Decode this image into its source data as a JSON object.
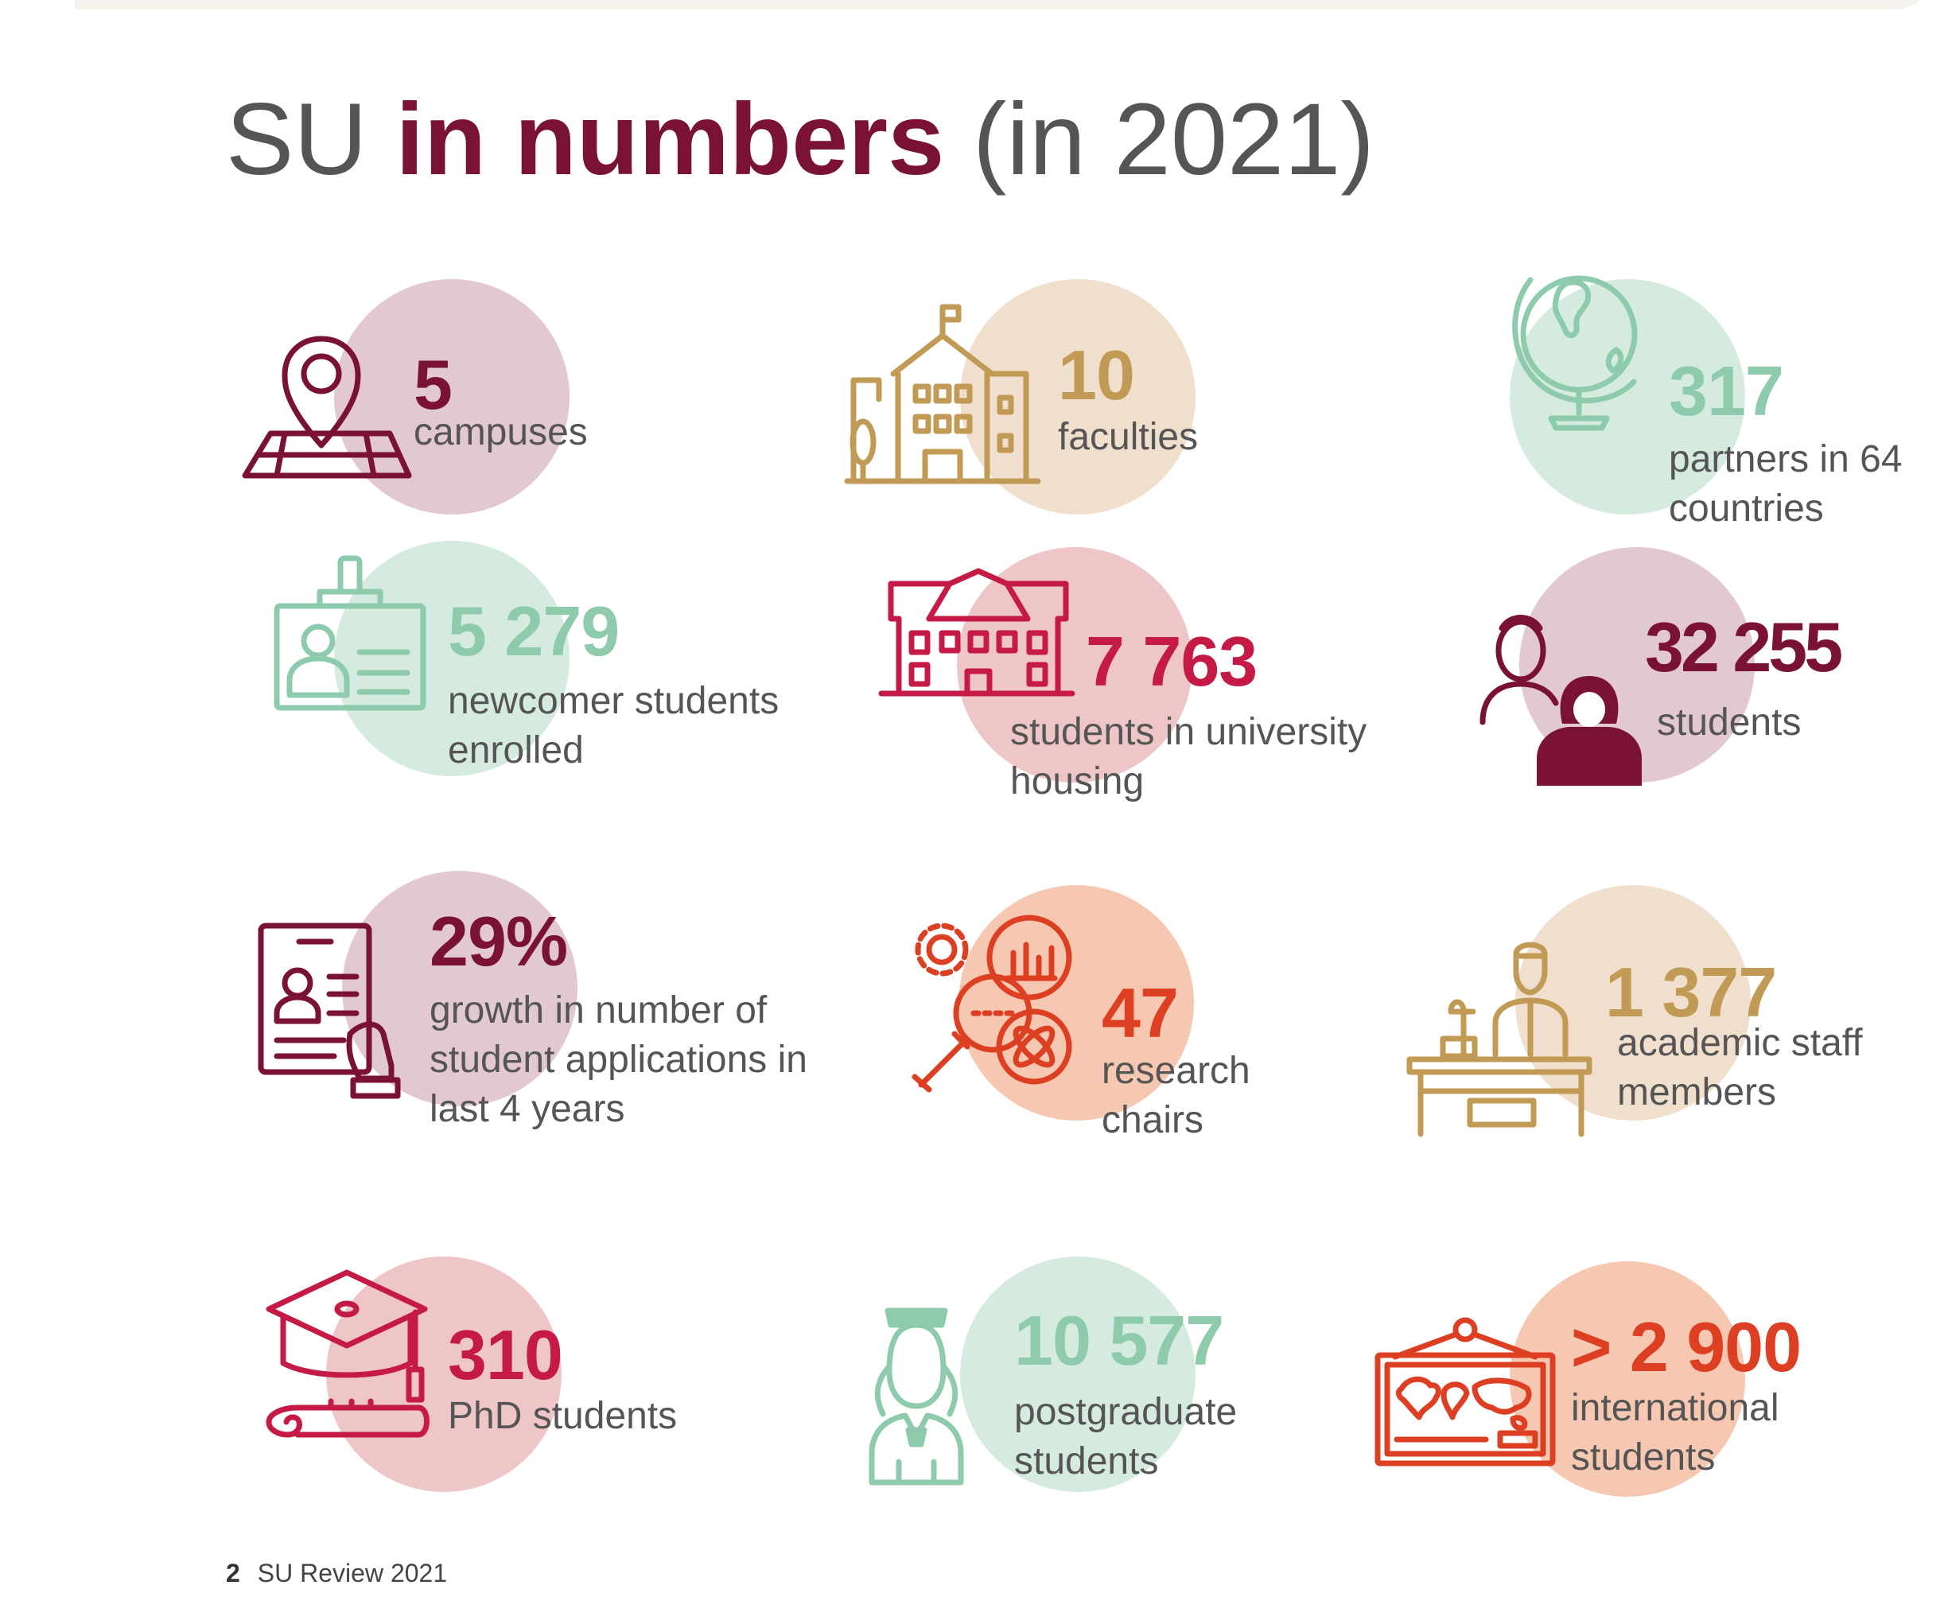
{
  "title": {
    "prefix": "SU",
    "emphasis": "in numbers",
    "suffix": "(in 2021)"
  },
  "colors": {
    "maroon": "#7a1136",
    "gold": "#c19a55",
    "mint": "#8ecbac",
    "crimson": "#c41a45",
    "orange": "#dd3f22",
    "text_grey": "#555555",
    "blob_mauve": "#e2c9d0",
    "blob_beige": "#f0dfcc",
    "blob_mint": "#d6ebdf",
    "blob_pink": "#eec6c8",
    "blob_peach": "#f6c7b1"
  },
  "stats": [
    {
      "id": "campuses",
      "icon": "map-pin-icon",
      "value": "5",
      "label": "campuses"
    },
    {
      "id": "faculties",
      "icon": "university-building-icon",
      "value": "10",
      "label": "faculties"
    },
    {
      "id": "partners",
      "icon": "globe-icon",
      "value": "317",
      "label": "partners in 64 countries"
    },
    {
      "id": "newcomers",
      "icon": "id-badge-icon",
      "value": "5 279",
      "label": "newcomer students enrolled"
    },
    {
      "id": "housing",
      "icon": "residence-house-icon",
      "value": "7 763",
      "label": "students in university housing"
    },
    {
      "id": "students",
      "icon": "students-people-icon",
      "value": "32 255",
      "label": "students"
    },
    {
      "id": "applications",
      "icon": "tablet-profile-icon",
      "value": "29%",
      "label": "growth in number of student applications in last 4 years"
    },
    {
      "id": "chairs",
      "icon": "research-magnifier-icon",
      "value": "47",
      "label": "research chairs"
    },
    {
      "id": "staff",
      "icon": "lecturer-desk-icon",
      "value": "1 377",
      "label": "academic staff members"
    },
    {
      "id": "phd",
      "icon": "graduation-cap-icon",
      "value": "310",
      "label": "PhD students"
    },
    {
      "id": "postgrad",
      "icon": "graduate-person-icon",
      "value": "10 577",
      "label": "postgraduate students"
    },
    {
      "id": "international",
      "icon": "world-map-board-icon",
      "value": "> 2 900",
      "label": "international students"
    }
  ],
  "footer": {
    "page_number": "2",
    "publication": "SU Review 2021"
  }
}
